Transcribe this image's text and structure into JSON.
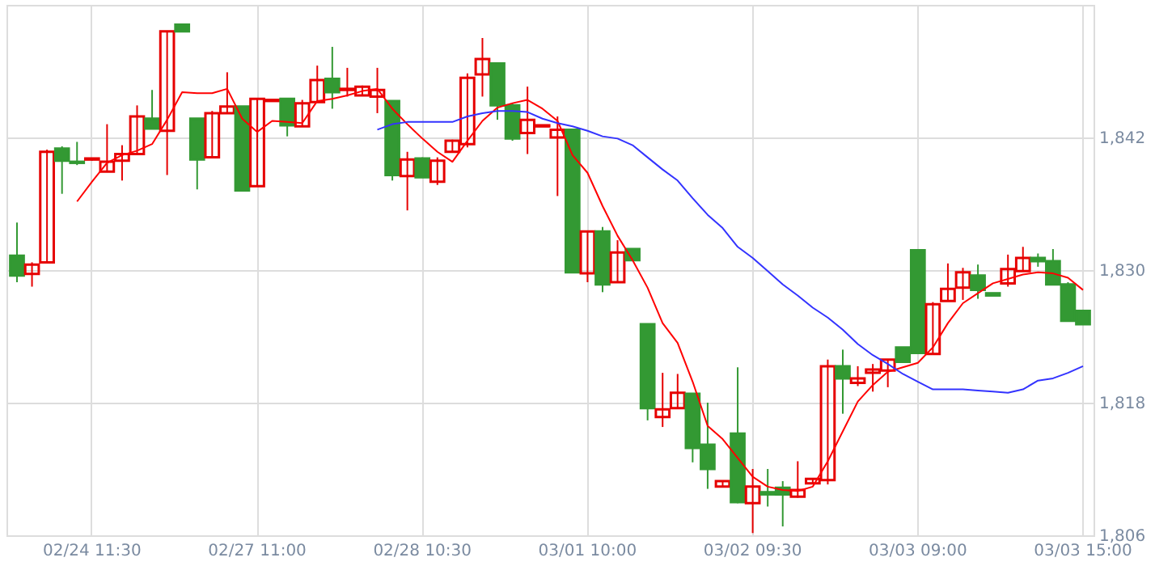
{
  "chart_data": {
    "type": "candlestick",
    "categories": [
      null,
      null,
      null,
      null,
      null,
      "02/24 11:30",
      null,
      null,
      null,
      null,
      null,
      null,
      null,
      null,
      null,
      null,
      "02/27 11:00",
      null,
      null,
      null,
      null,
      null,
      null,
      null,
      null,
      null,
      null,
      "02/28 10:30",
      null,
      null,
      null,
      null,
      null,
      null,
      null,
      null,
      null,
      null,
      "03/01 10:00",
      null,
      null,
      null,
      null,
      null,
      null,
      null,
      null,
      null,
      null,
      "03/02 09:30",
      null,
      null,
      null,
      null,
      null,
      null,
      null,
      null,
      null,
      null,
      "03/03 09:00",
      null,
      null,
      null,
      null,
      null,
      null,
      null,
      null,
      null,
      null,
      "03/03 15:00"
    ],
    "ohlc": [
      [
        1831.3,
        1834.3,
        1828.9,
        1829.5
      ],
      [
        1829.65,
        1830.7,
        1828.5,
        1830.5
      ],
      [
        1830.7,
        1840.9,
        1830.7,
        1840.7
      ],
      [
        1841.0,
        1841.2,
        1836.9,
        1839.9
      ],
      [
        1839.8,
        1841.6,
        1839.5,
        1839.7
      ],
      [
        1840.0,
        1840.1,
        1839.9,
        1840.1
      ],
      [
        1838.9,
        1843.2,
        1838.9,
        1839.8
      ],
      [
        1839.9,
        1841.3,
        1838.1,
        1840.5
      ],
      [
        1840.5,
        1844.9,
        1840.4,
        1843.9
      ],
      [
        1843.7,
        1846.3,
        1842.8,
        1842.8
      ],
      [
        1842.6,
        1851.6,
        1838.6,
        1851.6
      ],
      [
        1852.2,
        1852.2,
        1851.6,
        1851.6
      ],
      [
        1843.7,
        1843.7,
        1837.3,
        1840.0
      ],
      [
        1840.2,
        1844.4,
        1840.2,
        1844.2
      ],
      [
        1844.2,
        1847.9,
        1844.2,
        1844.8
      ],
      [
        1844.8,
        1844.8,
        1837.2,
        1837.2
      ],
      [
        1837.6,
        1845.5,
        1837.6,
        1845.5
      ],
      [
        1845.3,
        1845.4,
        1845.3,
        1845.4
      ],
      [
        1845.5,
        1845.5,
        1842.1,
        1843.1
      ],
      [
        1843.0,
        1845.4,
        1843.0,
        1845.1
      ],
      [
        1845.2,
        1848.5,
        1845.2,
        1847.2
      ],
      [
        1847.3,
        1850.2,
        1844.6,
        1846.1
      ],
      [
        1846.3,
        1848.3,
        1845.7,
        1846.4
      ],
      [
        1845.8,
        1846.7,
        1845.8,
        1846.6
      ],
      [
        1845.7,
        1848.3,
        1844.2,
        1846.3
      ],
      [
        1845.3,
        1845.3,
        1838.1,
        1838.6
      ],
      [
        1838.5,
        1840.7,
        1835.4,
        1840.0
      ],
      [
        1840.1,
        1840.2,
        1838.4,
        1838.4
      ],
      [
        1838.0,
        1840.2,
        1837.7,
        1839.9
      ],
      [
        1840.7,
        1841.8,
        1840.7,
        1841.7
      ],
      [
        1841.4,
        1847.8,
        1841.1,
        1847.4
      ],
      [
        1847.7,
        1851.0,
        1845.7,
        1849.1
      ],
      [
        1848.7,
        1848.7,
        1843.6,
        1844.9
      ],
      [
        1844.9,
        1845.1,
        1841.7,
        1841.9
      ],
      [
        1842.4,
        1846.6,
        1840.5,
        1843.6
      ],
      [
        1843.0,
        1843.1,
        1843.0,
        1843.1
      ],
      [
        1842.0,
        1843.9,
        1836.7,
        1842.7
      ],
      [
        1842.7,
        1842.8,
        1829.8,
        1829.8
      ],
      [
        1829.7,
        1833.5,
        1828.9,
        1833.5
      ],
      [
        1833.5,
        1833.9,
        1828.0,
        1828.7
      ],
      [
        1828.9,
        1832.7,
        1828.9,
        1831.6
      ],
      [
        1831.9,
        1831.9,
        1830.9,
        1830.9
      ],
      [
        1825.1,
        1825.1,
        1816.4,
        1817.5
      ],
      [
        1816.7,
        1820.7,
        1815.8,
        1817.4
      ],
      [
        1817.5,
        1820.6,
        1817.5,
        1818.9
      ],
      [
        1818.8,
        1818.8,
        1812.6,
        1813.9
      ],
      [
        1814.2,
        1818.0,
        1810.2,
        1812.0
      ],
      [
        1810.4,
        1810.9,
        1810.4,
        1810.9
      ],
      [
        1815.2,
        1821.2,
        1808.9,
        1809.0
      ],
      [
        1808.9,
        1812.0,
        1806.2,
        1810.4
      ],
      [
        1809.9,
        1812.0,
        1808.6,
        1809.7
      ],
      [
        1810.3,
        1810.9,
        1806.8,
        1809.7
      ],
      [
        1809.5,
        1812.7,
        1809.4,
        1810.1
      ],
      [
        1810.7,
        1811.1,
        1810.7,
        1811.1
      ],
      [
        1811.0,
        1821.9,
        1810.6,
        1821.3
      ],
      [
        1821.3,
        1822.8,
        1817.0,
        1820.2
      ],
      [
        1819.8,
        1821.3,
        1819.5,
        1820.2
      ],
      [
        1820.7,
        1821.5,
        1819.0,
        1821.0
      ],
      [
        1820.9,
        1821.9,
        1819.4,
        1821.9
      ],
      [
        1823.0,
        1823.0,
        1821.7,
        1821.7
      ],
      [
        1831.8,
        1831.8,
        1822.5,
        1822.5
      ],
      [
        1822.4,
        1827.1,
        1822.4,
        1826.9
      ],
      [
        1827.2,
        1830.6,
        1827.2,
        1828.3
      ],
      [
        1828.4,
        1830.2,
        1827.3,
        1829.8
      ],
      [
        1829.5,
        1830.5,
        1827.4,
        1828.2
      ],
      [
        1827.9,
        1827.9,
        1827.7,
        1827.7
      ],
      [
        1828.8,
        1831.4,
        1828.5,
        1830.1
      ],
      [
        1829.9,
        1832.1,
        1829.9,
        1831.1
      ],
      [
        1831.1,
        1831.5,
        1830.3,
        1830.8
      ],
      [
        1830.8,
        1831.9,
        1828.7,
        1828.7
      ],
      [
        1828.7,
        1828.9,
        1825.4,
        1825.4
      ],
      [
        1826.3,
        1826.3,
        1825.1,
        1825.1
      ]
    ],
    "colors": [
      "#339933",
      "#e60000",
      "#e60000",
      "#339933",
      "#339933",
      "#e60000",
      "#e60000",
      "#e60000",
      "#e60000",
      "#339933",
      "#e60000",
      "#339933",
      "#339933",
      "#e60000",
      "#e60000",
      "#339933",
      "#e60000",
      "#e60000",
      "#339933",
      "#e60000",
      "#e60000",
      "#339933",
      "#e60000",
      "#e60000",
      "#e60000",
      "#339933",
      "#e60000",
      "#339933",
      "#e60000",
      "#e60000",
      "#e60000",
      "#e60000",
      "#339933",
      "#339933",
      "#e60000",
      "#e60000",
      "#e60000",
      "#339933",
      "#e60000",
      "#339933",
      "#e60000",
      "#339933",
      "#339933",
      "#e60000",
      "#e60000",
      "#339933",
      "#339933",
      "#e60000",
      "#339933",
      "#e60000",
      "#339933",
      "#339933",
      "#e60000",
      "#e60000",
      "#e60000",
      "#339933",
      "#e60000",
      "#e60000",
      "#e60000",
      "#339933",
      "#339933",
      "#e60000",
      "#e60000",
      "#e60000",
      "#339933",
      "#339933",
      "#e60000",
      "#e60000",
      "#339933",
      "#339933",
      "#339933",
      "#339933"
    ],
    "series": [
      {
        "type": "line",
        "color": "#ff0000",
        "values": [
          null,
          null,
          null,
          null,
          1836.2,
          1838.0,
          1839.7,
          1840.4,
          1840.8,
          1841.4,
          1843.6,
          1846.1,
          1846.0,
          1846.0,
          1846.4,
          1843.7,
          1842.5,
          1843.5,
          1843.4,
          1843.3,
          1845.3,
          1845.5,
          1845.8,
          1846.2,
          1846.4,
          1844.6,
          1843.2,
          1841.9,
          1840.7,
          1839.8,
          1841.7,
          1843.5,
          1844.7,
          1845.1,
          1845.4,
          1844.6,
          1843.5,
          1840.4,
          1838.8,
          1835.8,
          1833.1,
          1830.9,
          1828.4,
          1825.2,
          1823.4,
          1819.9,
          1815.9,
          1814.7,
          1813.0,
          1811.3,
          1810.4,
          1810.1,
          1810.0,
          1810.4,
          1812.7,
          1815.4,
          1818.1,
          1819.6,
          1820.8,
          1821.2,
          1821.6,
          1823.0,
          1825.2,
          1827.0,
          1827.9,
          1828.8,
          1829.2,
          1829.6,
          1829.8,
          1829.7,
          1829.3,
          1828.2
        ]
      },
      {
        "type": "line",
        "color": "#3333ff",
        "values": [
          null,
          null,
          null,
          null,
          null,
          null,
          null,
          null,
          null,
          null,
          null,
          null,
          null,
          null,
          null,
          null,
          null,
          null,
          null,
          null,
          null,
          null,
          null,
          null,
          1842.7,
          1843.2,
          1843.4,
          1843.4,
          1843.4,
          1843.4,
          1843.9,
          1844.2,
          1844.4,
          1844.4,
          1844.3,
          1843.7,
          1843.3,
          1843.0,
          1842.6,
          1842.1,
          1841.9,
          1841.3,
          1840.2,
          1839.1,
          1838.1,
          1836.5,
          1835.0,
          1833.8,
          1832.1,
          1831.1,
          1829.9,
          1828.7,
          1827.7,
          1826.6,
          1825.7,
          1824.6,
          1823.3,
          1822.3,
          1821.5,
          1820.6,
          1819.9,
          1819.2,
          1819.2,
          1819.2,
          1819.1,
          1819.0,
          1818.9,
          1819.2,
          1820.0,
          1820.2,
          1820.7,
          1821.3
        ]
      }
    ],
    "ylim": [
      1806,
      1854
    ],
    "yticks": [
      {
        "value": 1806,
        "label": "1,806"
      },
      {
        "value": 1818,
        "label": "1,818"
      },
      {
        "value": 1830,
        "label": "1,830"
      },
      {
        "value": 1842,
        "label": "1,842"
      }
    ],
    "grid": true
  }
}
